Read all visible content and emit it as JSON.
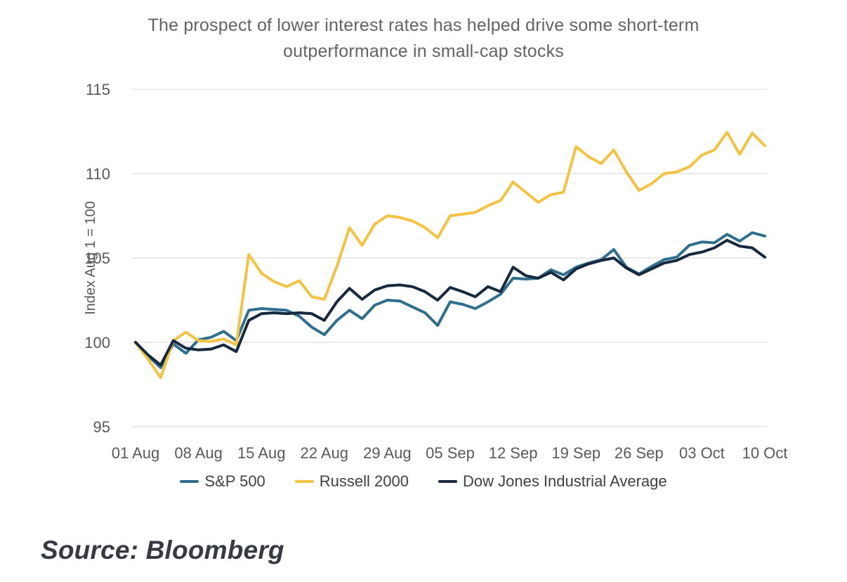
{
  "title": {
    "line1": "The prospect of lower interest rates has helped drive some short-term",
    "line2": "outperformance in small-cap stocks"
  },
  "source_note": "Source: Bloomberg",
  "chart_data": {
    "type": "line",
    "title": "The prospect of lower interest rates has helped drive some short-term outperformance in small-cap stocks",
    "xlabel": "",
    "ylabel": "Index Aug 1 = 100",
    "ylim": [
      95,
      115
    ],
    "yticks": [
      95,
      100,
      105,
      110,
      115
    ],
    "xticklabels": [
      "01 Aug",
      "08 Aug",
      "15 Aug",
      "22 Aug",
      "29 Aug",
      "05 Sep",
      "12 Sep",
      "19 Sep",
      "26 Sep",
      "03 Oct",
      "10 Oct"
    ],
    "points_per_tick": 5,
    "grid": "horizontal-only",
    "gridline_color": "#e3e3e3",
    "tick_label_color": "#595959",
    "legend_position": "bottom",
    "series": [
      {
        "name": "S&P 500",
        "color": "#2E6F8F",
        "values": [
          100,
          99.2,
          98.5,
          99.9,
          99.35,
          100.15,
          100.3,
          100.65,
          100.1,
          101.9,
          102.0,
          101.95,
          101.9,
          101.55,
          100.9,
          100.45,
          101.3,
          101.9,
          101.4,
          102.2,
          102.5,
          102.45,
          102.1,
          101.75,
          101.0,
          102.4,
          102.25,
          102.0,
          102.4,
          102.85,
          103.8,
          103.75,
          103.8,
          104.3,
          104.0,
          104.45,
          104.7,
          104.9,
          105.5,
          104.45,
          104.05,
          104.5,
          104.9,
          105.05,
          105.75,
          105.95,
          105.9,
          106.4,
          106.0,
          106.5,
          106.3
        ]
      },
      {
        "name": "Russell 2000",
        "color": "#F5C342",
        "values": [
          100,
          99.0,
          97.9,
          100.1,
          100.6,
          100.1,
          100.05,
          100.2,
          99.85,
          105.2,
          104.1,
          103.6,
          103.3,
          103.65,
          102.7,
          102.55,
          104.5,
          106.8,
          105.75,
          107.0,
          107.5,
          107.4,
          107.2,
          106.8,
          106.2,
          107.5,
          107.6,
          107.7,
          108.1,
          108.4,
          109.5,
          108.9,
          108.3,
          108.75,
          108.9,
          111.6,
          111.0,
          110.6,
          111.4,
          110.1,
          109.0,
          109.4,
          110.0,
          110.1,
          110.4,
          111.1,
          111.4,
          112.45,
          111.15,
          112.4,
          111.65
        ]
      },
      {
        "name": "Dow Jones Industrial Average",
        "color": "#16293E",
        "values": [
          100,
          99.25,
          98.65,
          100.1,
          99.65,
          99.55,
          99.6,
          99.85,
          99.45,
          101.3,
          101.7,
          101.75,
          101.7,
          101.75,
          101.7,
          101.3,
          102.4,
          103.2,
          102.55,
          103.1,
          103.35,
          103.4,
          103.3,
          103.0,
          102.5,
          103.25,
          103.0,
          102.7,
          103.3,
          103.0,
          104.45,
          103.95,
          103.8,
          104.15,
          103.7,
          104.35,
          104.65,
          104.85,
          105.0,
          104.4,
          104.0,
          104.35,
          104.7,
          104.85,
          105.2,
          105.35,
          105.6,
          106.05,
          105.7,
          105.6,
          105.05
        ]
      }
    ]
  }
}
